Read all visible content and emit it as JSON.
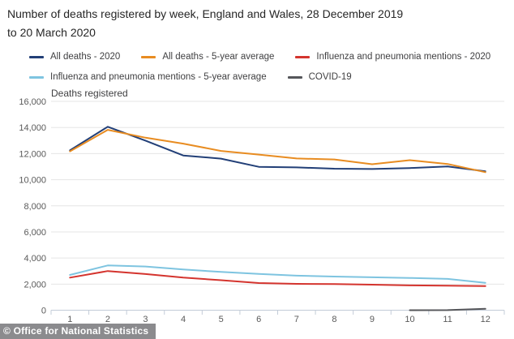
{
  "header": {
    "title_line1": "Number of deaths registered by week, England and Wales, 28 December 2019",
    "title_line2": "to 20 March 2020"
  },
  "footer": {
    "text": "© Office for National Statistics",
    "bg_color": "#8b8b8e"
  },
  "chart_data": {
    "type": "line",
    "title": "Number of deaths registered by week, England and Wales, 28 December 2019 to 20 March 2020",
    "ylabel": "Deaths registered",
    "xlabel": "",
    "x_unit": "week",
    "x": [
      1,
      2,
      3,
      4,
      5,
      6,
      7,
      8,
      9,
      10,
      11,
      12
    ],
    "ylim": [
      0,
      16000
    ],
    "ytick_step": 2000,
    "grid": "horizontal",
    "legend_position": "top",
    "series": [
      {
        "name": "All deaths - 2020",
        "color": "#223f77",
        "values": [
          12254,
          14058,
          12990,
          11856,
          11612,
          10986,
          10944,
          10841,
          10816,
          10895,
          11019,
          10645
        ]
      },
      {
        "name": "All deaths - 5-year average",
        "color": "#e88c21",
        "values": [
          12175,
          13822,
          13216,
          12760,
          12206,
          11925,
          11627,
          11548,
          11183,
          11498,
          11205,
          10573
        ]
      },
      {
        "name": "Influenza and pneumonia mentions - 2020",
        "color": "#d4342e",
        "values": [
          2500,
          3000,
          2770,
          2500,
          2300,
          2080,
          2020,
          2000,
          1960,
          1900,
          1880,
          1850
        ]
      },
      {
        "name": "Influenza and pneumonia mentions - 5-year average",
        "color": "#7ec4e0",
        "values": [
          2700,
          3430,
          3350,
          3120,
          2930,
          2780,
          2650,
          2580,
          2520,
          2470,
          2400,
          2100
        ]
      },
      {
        "name": "COVID-19",
        "color": "#55565a",
        "values": [
          null,
          null,
          null,
          null,
          null,
          null,
          null,
          null,
          null,
          0,
          5,
          103
        ]
      }
    ]
  }
}
